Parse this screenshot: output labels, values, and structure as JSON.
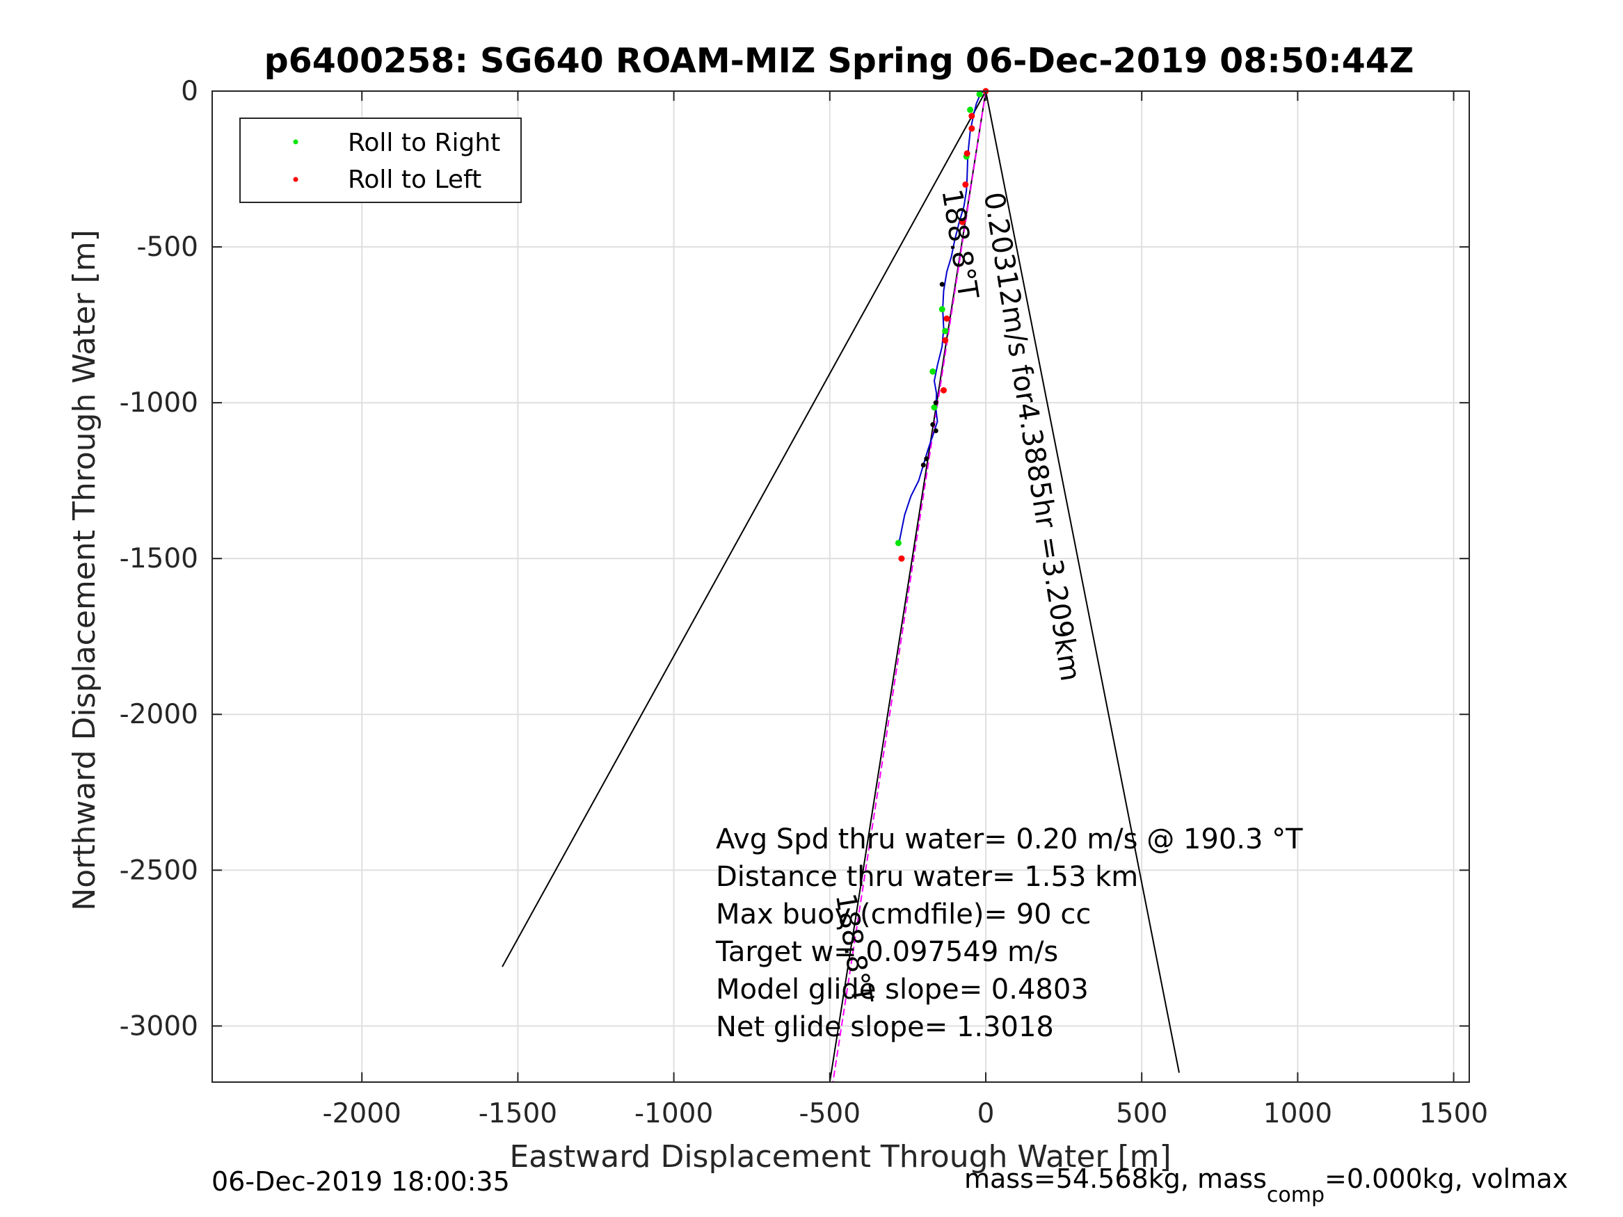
{
  "chart_data": {
    "type": "line",
    "title": "p6400258: SG640 ROAM-MIZ Spring 06-Dec-2019 08:50:44Z",
    "xlabel": "Eastward Displacement Through Water [m]",
    "ylabel": "Northward Displacement Through Water [m]",
    "xlim": [
      -2480,
      1550
    ],
    "ylim": [
      -3180,
      0
    ],
    "xticks": [
      -2000,
      -1500,
      -1000,
      -500,
      0,
      500,
      1000,
      1500
    ],
    "xtick_labels": [
      "-2000",
      "-1500",
      "-1000",
      "-500",
      "0",
      "500",
      "1000",
      "1500"
    ],
    "yticks": [
      0,
      -500,
      -1000,
      -1500,
      -2000,
      -2500,
      -3000
    ],
    "ytick_labels": [
      "0",
      "-500",
      "-1000",
      "-1500",
      "-2000",
      "-2500",
      "-3000"
    ],
    "grid": true,
    "legend": {
      "placement": "top-left",
      "entries": [
        {
          "label": "Roll to Right",
          "color": "#00e600"
        },
        {
          "label": "Roll to Left",
          "color": "#ff0000"
        }
      ]
    },
    "track": {
      "color": "#0000cc",
      "points": [
        [
          0,
          0
        ],
        [
          -15,
          -5
        ],
        [
          -30,
          -40
        ],
        [
          -40,
          -80
        ],
        [
          -50,
          -130
        ],
        [
          -55,
          -180
        ],
        [
          -58,
          -220
        ],
        [
          -60,
          -280
        ],
        [
          -62,
          -320
        ],
        [
          -70,
          -370
        ],
        [
          -85,
          -420
        ],
        [
          -100,
          -480
        ],
        [
          -110,
          -530
        ],
        [
          -125,
          -580
        ],
        [
          -135,
          -640
        ],
        [
          -138,
          -700
        ],
        [
          -135,
          -760
        ],
        [
          -140,
          -820
        ],
        [
          -155,
          -880
        ],
        [
          -165,
          -930
        ],
        [
          -158,
          -970
        ],
        [
          -160,
          -1020
        ],
        [
          -155,
          -1060
        ],
        [
          -168,
          -1100
        ],
        [
          -185,
          -1150
        ],
        [
          -200,
          -1200
        ],
        [
          -215,
          -1250
        ],
        [
          -240,
          -1300
        ],
        [
          -260,
          -1360
        ],
        [
          -272,
          -1420
        ],
        [
          -278,
          -1450
        ]
      ]
    },
    "roll_right_points": [
      [
        -20,
        -10
      ],
      [
        -50,
        -60
      ],
      [
        -62,
        -210
      ],
      [
        -140,
        -700
      ],
      [
        -130,
        -770
      ],
      [
        -170,
        -900
      ],
      [
        -165,
        -1015
      ],
      [
        -280,
        -1450
      ]
    ],
    "roll_left_points": [
      [
        -45,
        -80
      ],
      [
        -45,
        -120
      ],
      [
        -60,
        -200
      ],
      [
        -65,
        -300
      ],
      [
        -75,
        -420
      ],
      [
        -125,
        -730
      ],
      [
        -130,
        -800
      ],
      [
        -135,
        -960
      ],
      [
        -270,
        -1500
      ],
      [
        0,
        0
      ]
    ],
    "black_points": [
      [
        -140,
        -620
      ],
      [
        -160,
        -1000
      ],
      [
        -170,
        -1070
      ],
      [
        -160,
        -1090
      ],
      [
        -190,
        -1180
      ],
      [
        -200,
        -1200
      ]
    ],
    "cone_lines": [
      [
        [
          0,
          0
        ],
        [
          -1550,
          -2810
        ]
      ],
      [
        [
          0,
          0
        ],
        [
          620,
          -3150
        ]
      ]
    ],
    "heading_line": {
      "color": "#ff00ff",
      "points": [
        [
          0,
          0
        ],
        [
          -490,
          -3180
        ]
      ]
    },
    "reference_line": {
      "color": "#000000",
      "points": [
        [
          0,
          0
        ],
        [
          -500,
          -3180
        ]
      ]
    },
    "annotations": [
      {
        "text": "0.20312m/s for4.3885hr =3.209km",
        "at": [
          -5,
          -330
        ],
        "rotation": 81
      },
      {
        "text": "188.8°T",
        "at": [
          -140,
          -320
        ],
        "rotation": 81
      },
      {
        "text": "188.8°T",
        "at": [
          -480,
          -2580
        ],
        "rotation": 81
      }
    ],
    "info_lines": [
      "Avg Spd thru water=  0.20 m/s @ 190.3 °T",
      "Distance thru water=  1.53 km",
      "Max buoy (cmdfile)= 90 cc",
      "Target w= 0.097549 m/s",
      "Model glide slope= 0.4803",
      "Net glide slope= 1.3018"
    ]
  },
  "footer": {
    "timestamp": "06-Dec-2019 18:00:35",
    "mass_prefix": "mass=54.568kg, mass",
    "mass_sub": "comp",
    "mass_suffix": "=0.000kg, volmax"
  }
}
